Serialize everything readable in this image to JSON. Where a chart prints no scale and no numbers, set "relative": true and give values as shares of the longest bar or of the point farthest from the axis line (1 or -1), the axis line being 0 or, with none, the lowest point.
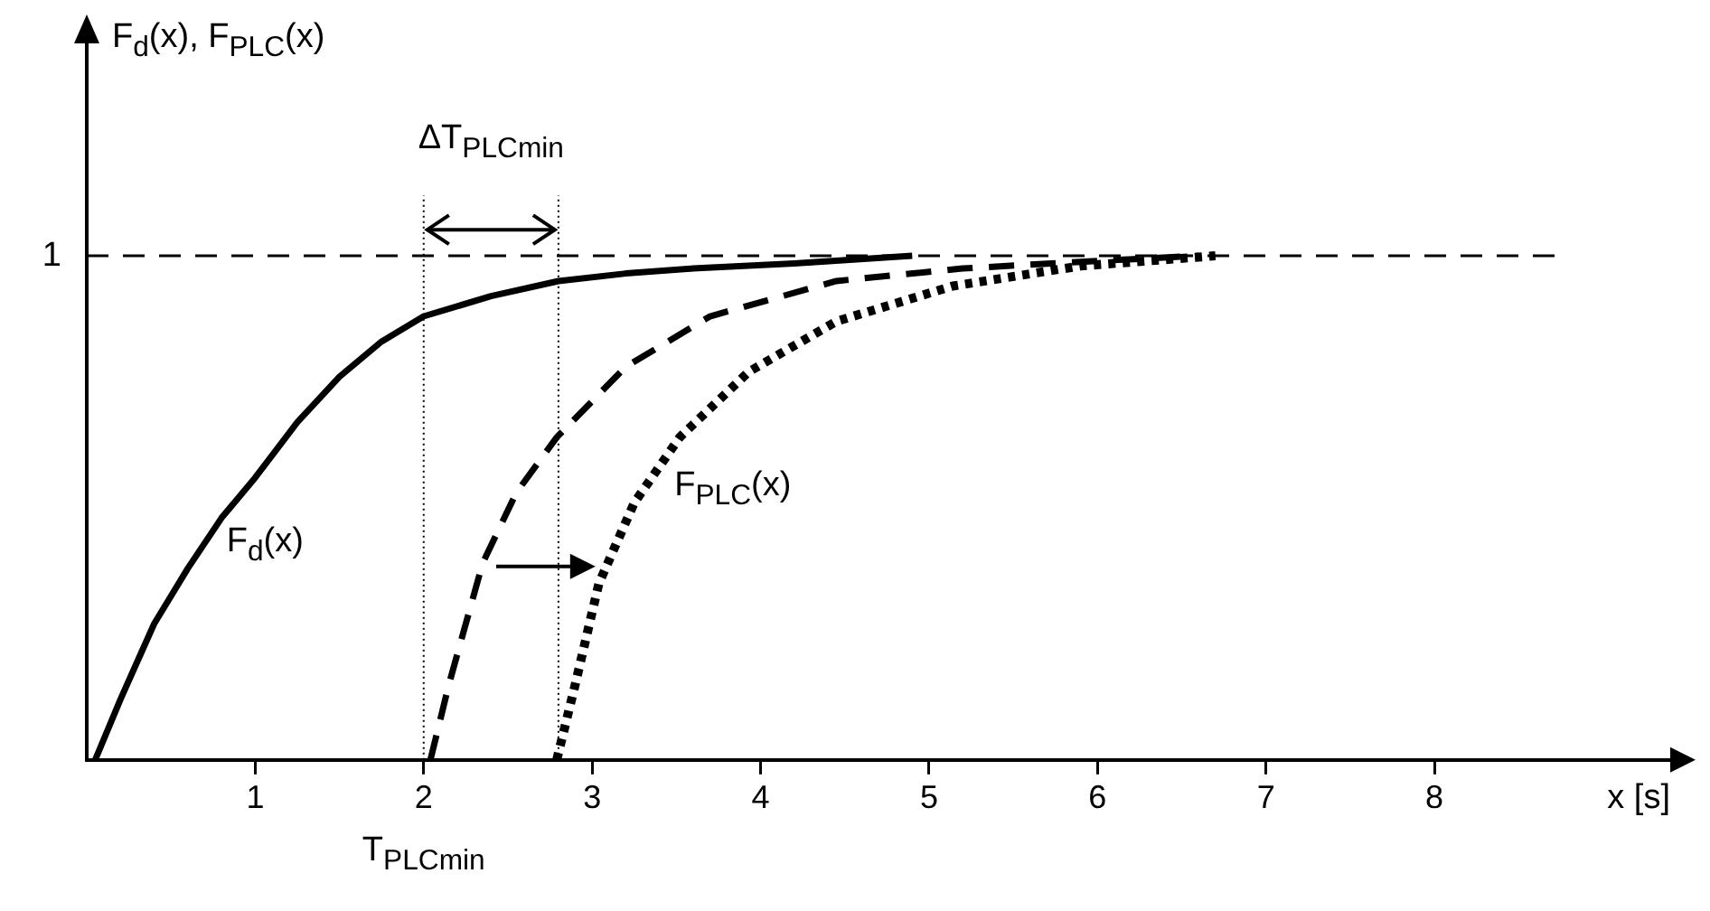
{
  "chart_data": {
    "type": "line",
    "relative": true,
    "xlabel": "x [s]",
    "xlim": [
      0,
      9.4
    ],
    "xticks": [
      1,
      2,
      3,
      4,
      5,
      6,
      7,
      8
    ],
    "series": [
      {
        "name": "F$_{d}$(x)",
        "color": "#000000",
        "line_style": "solid",
        "x": [
          0.05,
          0.2,
          0.4,
          0.6,
          0.8,
          1,
          1.25,
          1.5,
          1.75,
          2,
          2.4,
          2.8,
          3.2,
          3.6,
          4.2,
          4.9
        ],
        "values": [
          0,
          0.12,
          0.27,
          0.38,
          0.48,
          0.56,
          0.67,
          0.76,
          0.83,
          0.88,
          0.92,
          0.95,
          0.965,
          0.975,
          0.985,
          1
        ]
      },
      {
        "color": "#000000",
        "line_style": "dashed",
        "x": [
          2.04,
          2.15,
          2.35,
          2.55,
          2.79,
          3.2,
          3.7,
          4.45,
          5.2,
          6,
          6.6
        ],
        "values": [
          0,
          0.15,
          0.39,
          0.53,
          0.64,
          0.78,
          0.88,
          0.95,
          0.975,
          0.99,
          1
        ]
      },
      {
        "name": "F$_{PLC}$(x)",
        "color": "#000000",
        "line_style": "dotted",
        "x": [
          2.79,
          2.9,
          3.04,
          3.25,
          3.52,
          3.93,
          4.45,
          5.14,
          5.9,
          6.7
        ],
        "values": [
          0,
          0.15,
          0.35,
          0.51,
          0.64,
          0.77,
          0.87,
          0.94,
          0.98,
          1
        ]
      }
    ],
    "ref_lines": [
      {
        "axis": "y",
        "value": 1,
        "label": "1",
        "line_style": "dashed"
      },
      {
        "axis": "x",
        "value": 2,
        "label": "T$_{PLCmin}$",
        "line_style": "dotted"
      },
      {
        "axis": "x",
        "value": 2.8,
        "line_style": "dotted"
      }
    ],
    "annotations": [
      "F$_{d}$(x), F$_{PLC}$(x)",
      "ΔT$_{PLCmin}$"
    ]
  }
}
